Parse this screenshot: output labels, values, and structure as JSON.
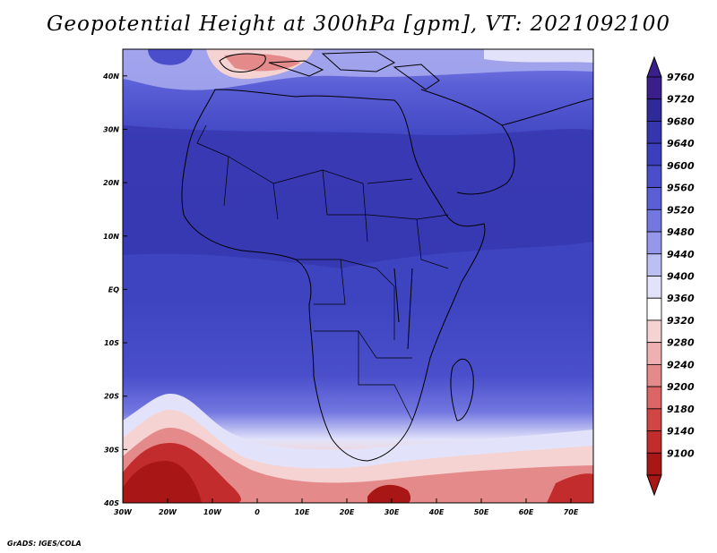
{
  "title": "Geopotential Height at 300hPa [gpm], VT: 2021092100",
  "footer": "GrADS: IGES/COLA",
  "map": {
    "lon_range": [
      -30,
      75
    ],
    "lat_range": [
      -40,
      45
    ],
    "lon_ticks": [
      {
        "value": -30,
        "label": "30W"
      },
      {
        "value": -20,
        "label": "20W"
      },
      {
        "value": -10,
        "label": "10W"
      },
      {
        "value": 0,
        "label": "0"
      },
      {
        "value": 10,
        "label": "10E"
      },
      {
        "value": 20,
        "label": "20E"
      },
      {
        "value": 30,
        "label": "30E"
      },
      {
        "value": 40,
        "label": "40E"
      },
      {
        "value": 50,
        "label": "50E"
      },
      {
        "value": 60,
        "label": "60E"
      },
      {
        "value": 70,
        "label": "70E"
      }
    ],
    "lat_ticks": [
      {
        "value": 40,
        "label": "40N"
      },
      {
        "value": 30,
        "label": "30N"
      },
      {
        "value": 20,
        "label": "20N"
      },
      {
        "value": 10,
        "label": "10N"
      },
      {
        "value": 0,
        "label": "EQ"
      },
      {
        "value": -10,
        "label": "10S"
      },
      {
        "value": -20,
        "label": "20S"
      },
      {
        "value": -30,
        "label": "30S"
      },
      {
        "value": -40,
        "label": "40S"
      }
    ]
  },
  "colorbar": {
    "levels": [
      "9760",
      "9720",
      "9680",
      "9640",
      "9600",
      "9560",
      "9520",
      "9480",
      "9440",
      "9400",
      "9360",
      "9320",
      "9280",
      "9240",
      "9200",
      "9180",
      "9140",
      "9100"
    ],
    "colors": [
      "#3a1f8c",
      "#2f2a9a",
      "#3535ad",
      "#3c3fbd",
      "#4a4ecb",
      "#5b5fd6",
      "#7377e0",
      "#9598ea",
      "#bcbff2",
      "#e2e3fa",
      "#ffffff",
      "#f5d3d3",
      "#eeb0b0",
      "#e58a8a",
      "#dc6565",
      "#d24545",
      "#c22c2c",
      "#a81616"
    ]
  }
}
